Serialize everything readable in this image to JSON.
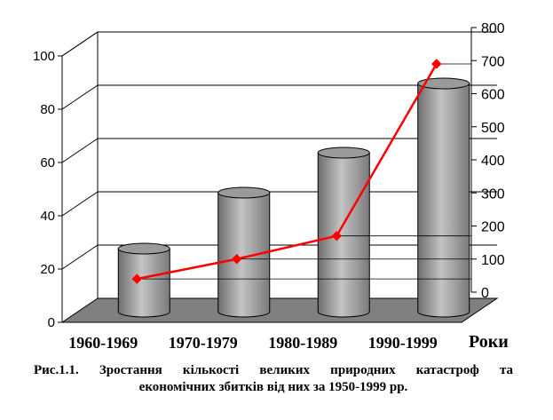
{
  "chart_data": {
    "type": "bar",
    "categories": [
      "1960-1969",
      "1970-1979",
      "1980-1989",
      "1990-1999"
    ],
    "series": [
      {
        "chart": "bar",
        "axis": "left",
        "values": [
          25,
          46,
          61,
          87
        ],
        "color": "#a9a9a9"
      },
      {
        "chart": "line",
        "axis": "right",
        "values": [
          40,
          100,
          170,
          690
        ],
        "color": "#ff0000"
      }
    ],
    "y_left": {
      "min": 0,
      "max": 100,
      "ticks": [
        "0",
        "20",
        "40",
        "60",
        "80",
        "100"
      ]
    },
    "y_right": {
      "min": 0,
      "max": 800,
      "ticks": [
        "0",
        "100",
        "200",
        "300",
        "400",
        "500",
        "600",
        "700",
        "800"
      ]
    },
    "xlabel": "Роки",
    "grid": true,
    "style": "3d-cylinder"
  },
  "caption": {
    "line1": "Рис.1.1.  Зростання  кількості  великих  природних  катастроф  та",
    "line2": "економічних збитків від них за 1950-1999 рр."
  }
}
